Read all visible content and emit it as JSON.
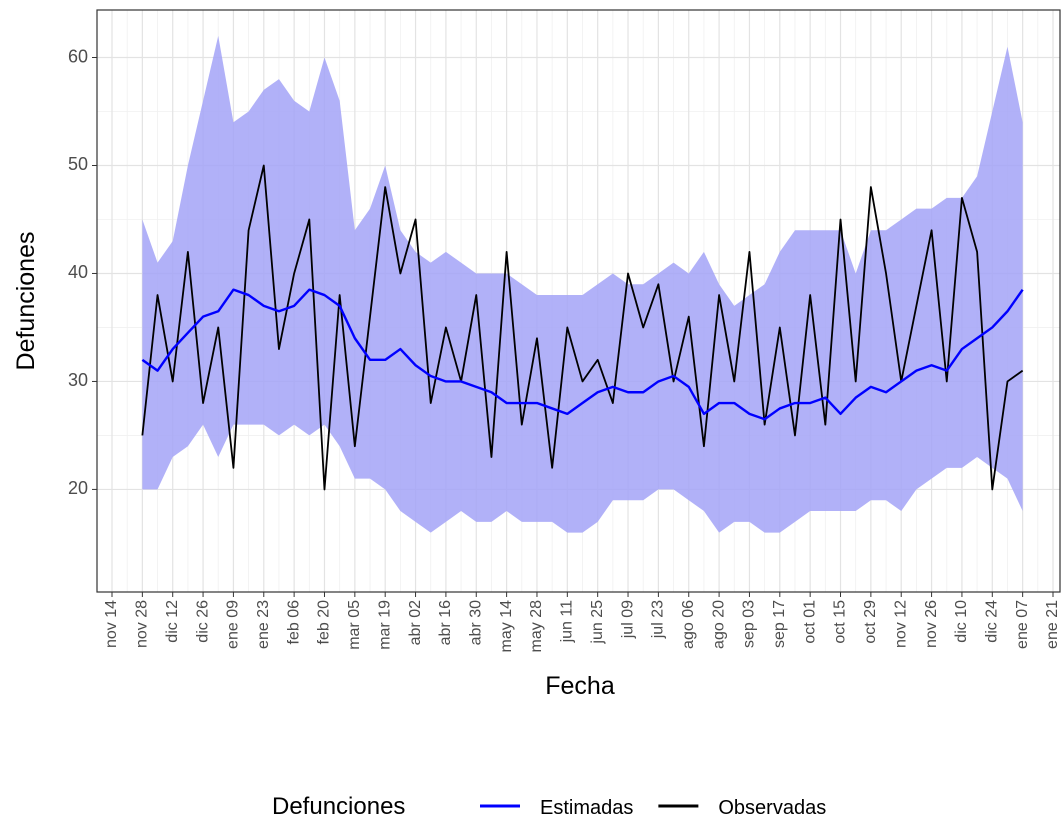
{
  "chart_data": {
    "type": "line",
    "x_label": "Fecha",
    "y_label": "Defunciones",
    "legend_title": "Defunciones",
    "legend_position": "bottom",
    "grid": true,
    "ylim": [
      10.5,
      64.4
    ],
    "yticks": [
      20,
      30,
      40,
      50,
      60
    ],
    "xticks": [
      "nov 14",
      "nov 28",
      "dic 12",
      "dic 26",
      "ene 09",
      "ene 23",
      "feb 06",
      "feb 20",
      "mar 05",
      "mar 19",
      "abr 02",
      "abr 16",
      "abr 30",
      "may 14",
      "may 28",
      "jun 11",
      "jun 25",
      "jul 09",
      "jul 23",
      "ago 06",
      "ago 20",
      "sep 03",
      "sep 17",
      "oct 01",
      "oct 15",
      "oct 29",
      "nov 12",
      "nov 26",
      "dic 10",
      "dic 24",
      "ene 07",
      "ene 21"
    ],
    "x": [
      "nov 28",
      "dic 05",
      "dic 12",
      "dic 19",
      "dic 26",
      "ene 02",
      "ene 09",
      "ene 16",
      "ene 23",
      "ene 30",
      "feb 06",
      "feb 13",
      "feb 20",
      "feb 27",
      "mar 05",
      "mar 12",
      "mar 19",
      "mar 26",
      "abr 02",
      "abr 09",
      "abr 16",
      "abr 23",
      "abr 30",
      "may 07",
      "may 14",
      "may 21",
      "may 28",
      "jun 04",
      "jun 11",
      "jun 18",
      "jun 25",
      "jul 02",
      "jul 09",
      "jul 16",
      "jul 23",
      "jul 30",
      "ago 06",
      "ago 13",
      "ago 20",
      "ago 27",
      "sep 03",
      "sep 10",
      "sep 17",
      "sep 24",
      "oct 01",
      "oct 08",
      "oct 15",
      "oct 22",
      "oct 29",
      "nov 05",
      "nov 12",
      "nov 19",
      "nov 26",
      "dic 03",
      "dic 10",
      "dic 17",
      "dic 24",
      "dic 31",
      "ene 07"
    ],
    "band": {
      "color": "#a3a3f7",
      "upper": [
        45,
        41,
        43,
        50,
        56,
        62,
        54,
        55,
        57,
        58,
        56,
        55,
        60,
        56,
        44,
        46,
        50,
        44,
        42,
        41,
        42,
        41,
        40,
        40,
        40,
        39,
        38,
        38,
        38,
        38,
        39,
        40,
        39,
        39,
        40,
        41,
        40,
        42,
        39,
        37,
        38,
        39,
        42,
        44,
        44,
        44,
        44,
        40,
        44,
        44,
        45,
        46,
        46,
        47,
        47,
        49,
        55,
        61,
        54
      ],
      "lower": [
        20,
        20,
        23,
        24,
        26,
        23,
        26,
        26,
        26,
        25,
        26,
        25,
        26,
        24,
        21,
        21,
        20,
        18,
        17,
        16,
        17,
        18,
        17,
        17,
        18,
        17,
        17,
        17,
        16,
        16,
        17,
        19,
        19,
        19,
        20,
        20,
        19,
        18,
        16,
        17,
        17,
        16,
        16,
        17,
        18,
        18,
        18,
        18,
        19,
        19,
        18,
        20,
        21,
        22,
        22,
        23,
        22,
        21,
        18
      ]
    },
    "series": [
      {
        "name": "Estimadas",
        "color": "#0000ff",
        "values": [
          32,
          31,
          33,
          34.5,
          36,
          36.5,
          38.5,
          38,
          37,
          36.5,
          37,
          38.5,
          38,
          37,
          34,
          32,
          32,
          33,
          31.5,
          30.5,
          30,
          30,
          29.5,
          29,
          28,
          28,
          28,
          27.5,
          27,
          28,
          29,
          29.5,
          29,
          29,
          30,
          30.5,
          29.5,
          27,
          28,
          28,
          27,
          26.5,
          27.5,
          28,
          28,
          28.5,
          27,
          28.5,
          29.5,
          29,
          30,
          31,
          31.5,
          31,
          33,
          34,
          35,
          36.5,
          38.5
        ]
      },
      {
        "name": "Observadas",
        "color": "#000000",
        "values": [
          25,
          38,
          30,
          42,
          28,
          35,
          22,
          44,
          50,
          33,
          40,
          45,
          20,
          38,
          24,
          36,
          48,
          40,
          45,
          28,
          35,
          30,
          38,
          23,
          42,
          26,
          34,
          22,
          35,
          30,
          32,
          28,
          40,
          35,
          39,
          30,
          36,
          24,
          38,
          30,
          42,
          26,
          35,
          25,
          38,
          26,
          45,
          30,
          48,
          40,
          30,
          37,
          44,
          30,
          47,
          42,
          20,
          30,
          31
        ]
      }
    ]
  }
}
